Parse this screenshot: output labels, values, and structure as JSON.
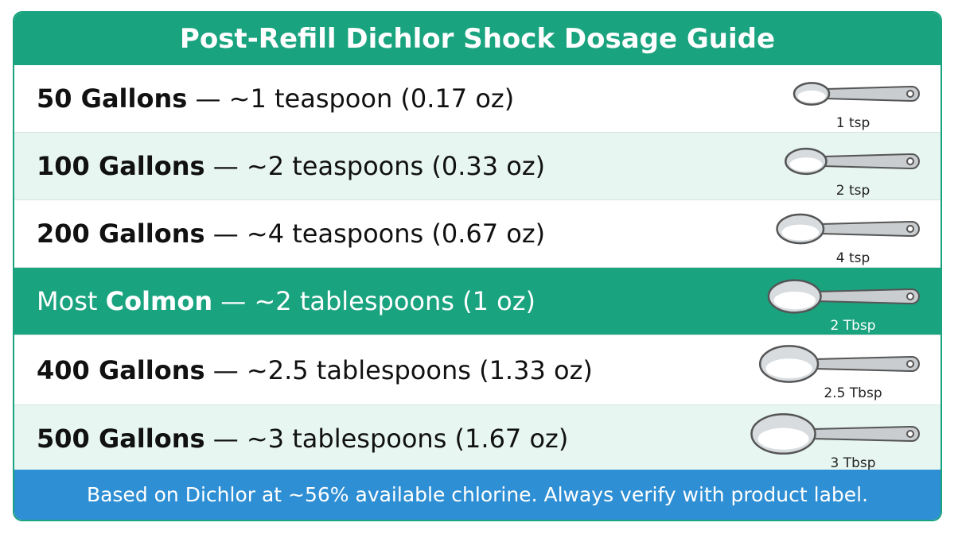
{
  "header": {
    "title": "Post-Refill Dichlor Shock Dosage Guide"
  },
  "rows": [
    {
      "parts": [
        {
          "text": "50 Gallons",
          "bold": true
        },
        {
          "text": " — ~1 teaspoon (0.17 oz)"
        }
      ],
      "spoon_label": "1 tsp"
    },
    {
      "parts": [
        {
          "text": "100 Gallons",
          "bold": true
        },
        {
          "text": " — ~2 teaspoons (0.33 oz)"
        }
      ],
      "spoon_label": "2 tsp"
    },
    {
      "parts": [
        {
          "text": "200 Gallons",
          "bold": true
        },
        {
          "text": " — ~4 teaspoons (0.67 oz)"
        }
      ],
      "spoon_label": "4 tsp"
    },
    {
      "parts": [
        {
          "text": "Most "
        },
        {
          "text": "Colmon",
          "bold": true
        },
        {
          "text": " — ~2 tablespoons (1 oz)"
        }
      ],
      "spoon_label": "2 Tbsp",
      "highlight": true
    },
    {
      "parts": [
        {
          "text": "400 Gallons",
          "bold": true
        },
        {
          "text": " — ~2.5 tablespoons (1.33 oz)"
        }
      ],
      "spoon_label": "2.5 Tbsp"
    },
    {
      "parts": [
        {
          "text": "500 Gallons",
          "bold": true
        },
        {
          "text": " — ~3 tablespoons (1.67 oz)"
        }
      ],
      "spoon_label": "3 Tbsp"
    }
  ],
  "footer": {
    "text": "Based on Dichlor at ~56% available chlorine. Always verify with product label."
  }
}
